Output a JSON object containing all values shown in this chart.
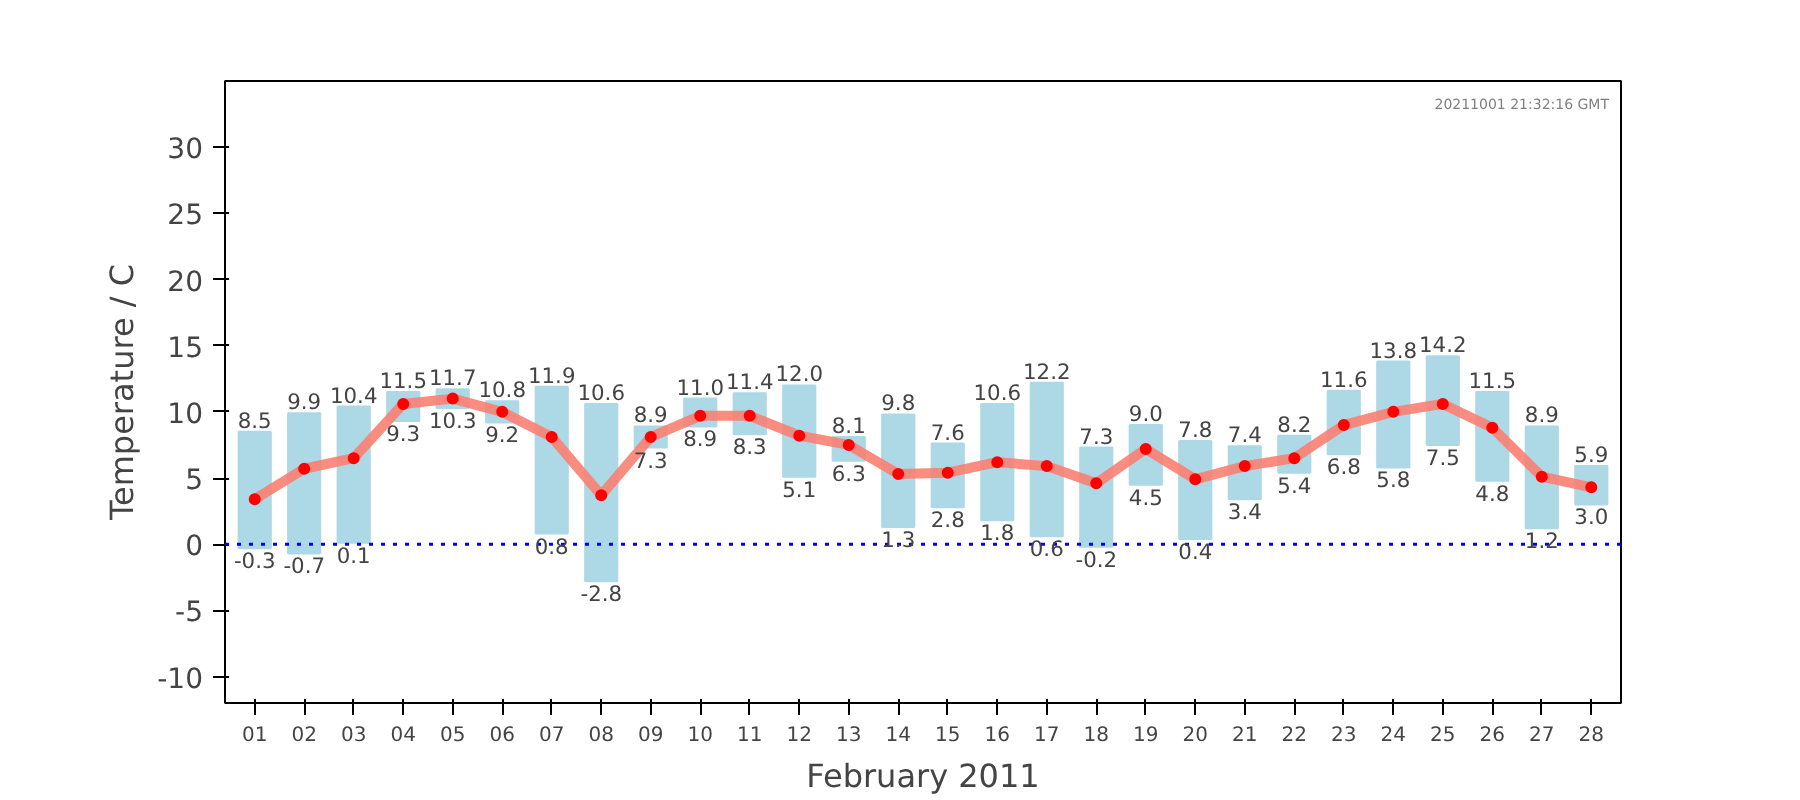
{
  "chart_data": {
    "type": "bar",
    "xlabel": "February 2011",
    "ylabel": "Temperature / C",
    "categories": [
      "01",
      "02",
      "03",
      "04",
      "05",
      "06",
      "07",
      "08",
      "09",
      "10",
      "11",
      "12",
      "13",
      "14",
      "15",
      "16",
      "17",
      "18",
      "19",
      "20",
      "21",
      "22",
      "23",
      "24",
      "25",
      "26",
      "27",
      "28"
    ],
    "series": [
      {
        "color": "#add8e6",
        "base": [
          -0.3,
          -0.7,
          0.1,
          9.3,
          10.3,
          9.2,
          0.8,
          -2.8,
          7.3,
          8.9,
          8.3,
          5.1,
          6.3,
          1.3,
          2.8,
          1.8,
          0.6,
          -0.2,
          4.5,
          0.4,
          3.4,
          5.4,
          6.8,
          5.8,
          7.5,
          4.8,
          1.2,
          3.0
        ],
        "values": [
          8.8,
          10.6,
          10.3,
          2.2,
          1.4,
          1.6,
          11.1,
          13.4,
          1.6,
          2.1,
          3.1,
          6.9,
          1.8,
          8.5,
          4.8,
          8.8,
          11.6,
          7.5,
          4.5,
          7.4,
          4.0,
          2.8,
          4.8,
          8.0,
          6.7,
          6.7,
          7.7,
          2.9
        ],
        "value_labels": [
          "8.5",
          "9.9",
          "10.4",
          "11.5",
          "11.7",
          "10.8",
          "11.9",
          "10.6",
          "8.9",
          "11.0",
          "11.4",
          "12.0",
          "8.1",
          "9.8",
          "7.6",
          "10.6",
          "12.2",
          "7.3",
          "9.0",
          "7.8",
          "7.4",
          "8.2",
          "11.6",
          "13.8",
          "14.2",
          "11.5",
          "8.9",
          "5.9"
        ]
      },
      {
        "type": "line",
        "color": "#fa8072",
        "marker": "circle",
        "values": [
          3.4,
          5.7,
          6.5,
          10.6,
          11.0,
          10.0,
          8.1,
          3.7,
          8.1,
          9.7,
          9.7,
          8.2,
          7.5,
          5.3,
          5.4,
          6.2,
          5.9,
          4.6,
          7.2,
          4.9,
          5.9,
          6.5,
          9.0,
          10.0,
          10.6,
          8.8,
          5.1,
          4.3
        ]
      }
    ],
    "ylim": [
      -12,
      35
    ],
    "yticks": [
      -10,
      -5,
      0,
      5,
      10,
      15,
      20,
      25,
      30
    ],
    "grid": false,
    "ref_lines": [
      {
        "axis": "y",
        "value": 0,
        "color": "#0000ff",
        "line_style": "dotted"
      }
    ],
    "annotations": [
      "20211001 21:32:16 GMT",
      {
        "text": "-0.3",
        "x": "01",
        "y": -0.3
      },
      {
        "text": "-0.7",
        "x": "02",
        "y": -0.7
      },
      {
        "text": "0.1",
        "x": "03",
        "y": 0.1
      },
      {
        "text": "9.3",
        "x": "04",
        "y": 9.3
      },
      {
        "text": "10.3",
        "x": "05",
        "y": 10.3
      },
      {
        "text": "9.2",
        "x": "06",
        "y": 9.2
      },
      {
        "text": "0.8",
        "x": "07",
        "y": 0.8
      },
      {
        "text": "-2.8",
        "x": "08",
        "y": -2.8
      },
      {
        "text": "7.3",
        "x": "09",
        "y": 7.3
      },
      {
        "text": "8.9",
        "x": "10",
        "y": 8.9
      },
      {
        "text": "8.3",
        "x": "11",
        "y": 8.3
      },
      {
        "text": "5.1",
        "x": "12",
        "y": 5.1
      },
      {
        "text": "6.3",
        "x": "13",
        "y": 6.3
      },
      {
        "text": "1.3",
        "x": "14",
        "y": 1.3
      },
      {
        "text": "2.8",
        "x": "15",
        "y": 2.8
      },
      {
        "text": "1.8",
        "x": "16",
        "y": 1.8
      },
      {
        "text": "0.6",
        "x": "17",
        "y": 0.6
      },
      {
        "text": "-0.2",
        "x": "18",
        "y": -0.2
      },
      {
        "text": "4.5",
        "x": "19",
        "y": 4.5
      },
      {
        "text": "0.4",
        "x": "20",
        "y": 0.4
      },
      {
        "text": "3.4",
        "x": "21",
        "y": 3.4
      },
      {
        "text": "5.4",
        "x": "22",
        "y": 5.4
      },
      {
        "text": "6.8",
        "x": "23",
        "y": 6.8
      },
      {
        "text": "5.8",
        "x": "24",
        "y": 5.8
      },
      {
        "text": "7.5",
        "x": "25",
        "y": 7.5
      },
      {
        "text": "4.8",
        "x": "26",
        "y": 4.8
      },
      {
        "text": "1.2",
        "x": "27",
        "y": 1.2
      },
      {
        "text": "3.0",
        "x": "28",
        "y": 3.0
      }
    ]
  }
}
